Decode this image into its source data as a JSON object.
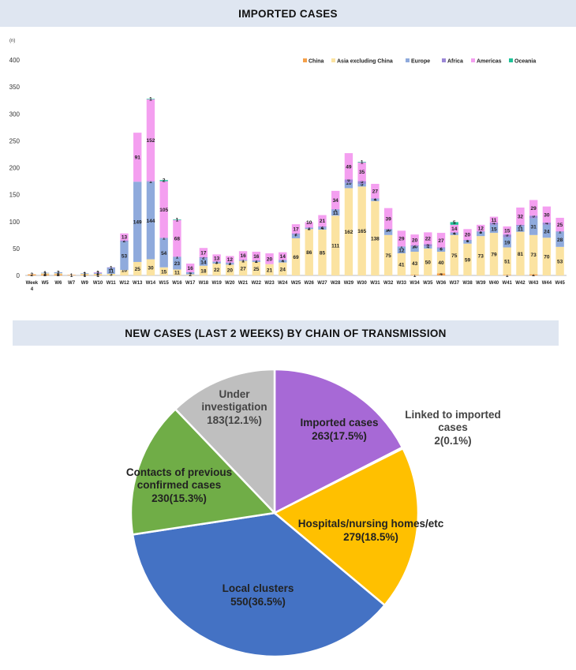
{
  "charts_header": {
    "imported_title": "IMPORTED CASES",
    "transmission_title": "NEW CASES (LAST 2 WEEKS) BY CHAIN OF TRANSMISSION"
  },
  "chart_data": [
    {
      "type": "bar",
      "stacked": true,
      "title": "IMPORTED CASES",
      "ylabel": "(n)",
      "ylim": [
        0,
        400
      ],
      "yticks": [
        0,
        50,
        100,
        150,
        200,
        250,
        300,
        350,
        400
      ],
      "legend_position": "top-right",
      "categories": [
        "Week 4",
        "W5",
        "W6",
        "W7",
        "W9",
        "W10",
        "W11",
        "W12",
        "W13",
        "W14",
        "W15",
        "W16",
        "W17",
        "W18",
        "W19",
        "W20",
        "W21",
        "W22",
        "W23",
        "W24",
        "W25",
        "W26",
        "W27",
        "W28",
        "W29",
        "W30",
        "W31",
        "W32",
        "W33",
        "W34",
        "W35",
        "W36",
        "W37",
        "W38",
        "W39",
        "W40",
        "W41",
        "W42",
        "W43",
        "W44",
        "W45"
      ],
      "series": [
        {
          "name": "China",
          "color": "#f5a04a",
          "values": [
            2,
            2,
            2,
            1,
            1,
            1,
            0,
            0,
            0,
            0,
            0,
            0,
            0,
            0,
            0,
            0,
            0,
            0,
            0,
            0,
            0,
            0,
            0,
            0,
            0,
            0,
            0,
            0,
            0,
            1,
            0,
            4,
            0,
            0,
            0,
            0,
            1,
            0,
            2,
            0,
            0
          ]
        },
        {
          "name": "Asia excluding China",
          "color": "#fbe3a1",
          "values": [
            0,
            2,
            2,
            0,
            2,
            2,
            3,
            10,
            25,
            30,
            15,
            11,
            2,
            18,
            22,
            20,
            27,
            25,
            21,
            24,
            69,
            86,
            85,
            111,
            162,
            165,
            138,
            75,
            41,
            43,
            50,
            40,
            75,
            59,
            73,
            79,
            51,
            81,
            73,
            70,
            53
          ]
        },
        {
          "name": "Europe",
          "color": "#8faadc",
          "values": [
            0,
            1,
            2,
            0,
            1,
            2,
            11,
            53,
            149,
            144,
            54,
            23,
            4,
            14,
            3,
            3,
            1,
            2,
            0,
            4,
            7,
            2,
            4,
            11,
            10,
            5,
            4,
            10,
            12,
            10,
            4,
            6,
            4,
            6,
            8,
            15,
            19,
            11,
            31,
            24,
            28
          ]
        },
        {
          "name": "Africa",
          "color": "#9b87d6",
          "values": [
            0,
            0,
            0,
            0,
            0,
            0,
            1,
            2,
            0,
            1,
            1,
            1,
            0,
            2,
            1,
            1,
            1,
            1,
            0,
            1,
            2,
            1,
            2,
            1,
            6,
            5,
            1,
            1,
            1,
            2,
            4,
            2,
            1,
            1,
            1,
            4,
            5,
            2,
            5,
            4,
            1
          ]
        },
        {
          "name": "Americas",
          "color": "#f49ff0",
          "values": [
            0,
            0,
            0,
            0,
            0,
            1,
            0,
            13,
            91,
            152,
            105,
            68,
            16,
            17,
            13,
            12,
            16,
            16,
            20,
            14,
            17,
            10,
            21,
            34,
            49,
            35,
            27,
            39,
            29,
            20,
            22,
            27,
            14,
            20,
            12,
            11,
            15,
            32,
            29,
            30,
            25
          ]
        },
        {
          "name": "Oceania",
          "color": "#1fc298",
          "values": [
            0,
            0,
            0,
            0,
            0,
            0,
            0,
            0,
            0,
            1,
            2,
            1,
            0,
            0,
            0,
            0,
            0,
            0,
            0,
            0,
            0,
            0,
            0,
            0,
            0,
            1,
            0,
            0,
            0,
            0,
            0,
            0,
            5,
            0,
            0,
            0,
            0,
            0,
            0,
            0,
            0
          ]
        }
      ]
    },
    {
      "type": "pie",
      "title": "NEW CASES (LAST 2 WEEKS) BY CHAIN OF TRANSMISSION",
      "slices": [
        {
          "label": "Imported cases",
          "value": 263,
          "display": "263(17.5%)",
          "color": "#a769d6"
        },
        {
          "label": "Linked to imported cases",
          "value": 2,
          "display": "2(0.1%)",
          "color": "#ffffff"
        },
        {
          "label": "Hospitals/nursing homes/etc",
          "value": 279,
          "display": "279(18.5%)",
          "color": "#ffc000"
        },
        {
          "label": "Local clusters",
          "value": 550,
          "display": "550(36.5%)",
          "color": "#4472c4"
        },
        {
          "label": "Contacts of previous confirmed cases",
          "value": 230,
          "display": "230(15.3%)",
          "color": "#70ad47"
        },
        {
          "label": "Under investigation",
          "value": 183,
          "display": "183(12.1%)",
          "color": "#bfbfbf"
        }
      ]
    }
  ]
}
